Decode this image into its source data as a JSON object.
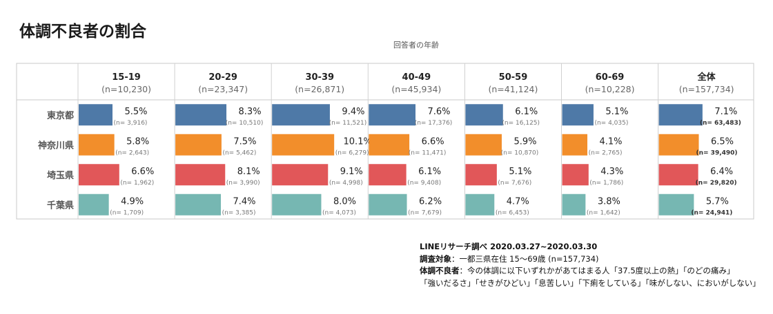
{
  "title": "体調不良者の割合",
  "axis_caption": "回答者の年齢",
  "chart_data": {
    "type": "bar",
    "title": "体調不良者の割合",
    "xlabel": "回答者の年齢",
    "value_unit": "%",
    "max_value": 11.0,
    "groups": [
      {
        "label": "15-19",
        "n": "(n=10,230)"
      },
      {
        "label": "20-29",
        "n": "(n=23,347)"
      },
      {
        "label": "30-39",
        "n": "(n=26,871)"
      },
      {
        "label": "40-49",
        "n": "(n=45,934)"
      },
      {
        "label": "50-59",
        "n": "(n=41,124)"
      },
      {
        "label": "60-69",
        "n": "(n=10,228)"
      },
      {
        "label": "全体",
        "n": "(n=157,734)"
      }
    ],
    "series": [
      {
        "name": "東京都",
        "color": "#4e79a7",
        "values": [
          5.5,
          8.3,
          9.4,
          7.6,
          6.1,
          5.1,
          7.1
        ],
        "labels": [
          "5.5%",
          "8.3%",
          "9.4%",
          "7.6%",
          "6.1%",
          "5.1%",
          "7.1%"
        ],
        "counts": [
          "(n= 3,916)",
          "(n= 10,510)",
          "(n= 11,521)",
          "(n= 17,376)",
          "(n= 16,125)",
          "(n= 4,035)",
          "(n= 63,483)"
        ]
      },
      {
        "name": "神奈川県",
        "color": "#f28e2b",
        "values": [
          5.8,
          7.5,
          10.1,
          6.6,
          5.9,
          4.1,
          6.5
        ],
        "labels": [
          "5.8%",
          "7.5%",
          "10.1%",
          "6.6%",
          "5.9%",
          "4.1%",
          "6.5%"
        ],
        "counts": [
          "(n= 2,643)",
          "(n= 5,462)",
          "(n= 6,279)",
          "(n= 11,471)",
          "(n= 10,870)",
          "(n= 2,765)",
          "(n= 39,490)"
        ]
      },
      {
        "name": "埼玉県",
        "color": "#e15759",
        "values": [
          6.6,
          8.1,
          9.1,
          6.1,
          5.1,
          4.3,
          6.4
        ],
        "labels": [
          "6.6%",
          "8.1%",
          "9.1%",
          "6.1%",
          "5.1%",
          "4.3%",
          "6.4%"
        ],
        "counts": [
          "(n= 1,962)",
          "(n= 3,990)",
          "(n= 4,998)",
          "(n= 9,408)",
          "(n= 7,676)",
          "(n= 1,786)",
          "(n= 29,820)"
        ]
      },
      {
        "name": "千葉県",
        "color": "#76b7b2",
        "values": [
          4.9,
          7.4,
          8.0,
          6.2,
          4.7,
          3.8,
          5.7
        ],
        "labels": [
          "4.9%",
          "7.4%",
          "8.0%",
          "6.2%",
          "4.7%",
          "3.8%",
          "5.7%"
        ],
        "counts": [
          "(n= 1,709)",
          "(n= 3,385)",
          "(n= 4,073)",
          "(n= 7,679)",
          "(n= 6,453)",
          "(n= 1,642)",
          "(n= 24,941)"
        ]
      }
    ]
  },
  "notes": {
    "source": "LINEリサーチ調べ 2020.03.27~2020.03.30",
    "target_label": "調査対象",
    "target_text": "：一都三県在住 15～69歳 (n=157,734)",
    "symptom_label": "体調不良者",
    "symptom_text": "：今の体調に以下いずれかがあてはまる人「37.5度以上の熱」「のどの痛み」",
    "symptom_text2": "「強いだるさ」「せきがひどい」「息苦しい」「下痢をしている」「味がしない、においがしない」"
  }
}
